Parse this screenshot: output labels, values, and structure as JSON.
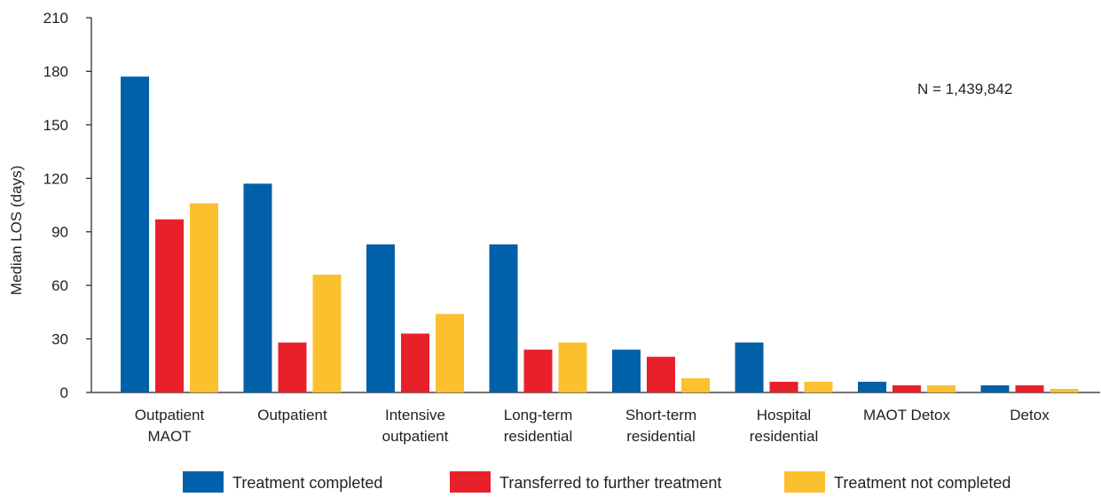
{
  "chart_data": {
    "type": "bar",
    "title": "",
    "xlabel": "",
    "ylabel": "Median LOS (days)",
    "ylim": [
      0,
      210
    ],
    "yticks": [
      0,
      30,
      60,
      90,
      120,
      150,
      180,
      210
    ],
    "grid": false,
    "legend_position": "bottom",
    "annotation": "N = 1,439,842",
    "categories": [
      [
        "Outpatient",
        "MAOT"
      ],
      [
        "Outpatient"
      ],
      [
        "Intensive",
        "outpatient"
      ],
      [
        "Long-term",
        "residential"
      ],
      [
        "Short-term",
        "residential"
      ],
      [
        "Hospital",
        "residential"
      ],
      [
        "MAOT Detox"
      ],
      [
        "Detox"
      ]
    ],
    "series": [
      {
        "name": "Treatment completed",
        "color": "#0060a9",
        "values": [
          177,
          117,
          83,
          83,
          24,
          28,
          6,
          4
        ]
      },
      {
        "name": "Transferred to further treatment",
        "color": "#e8202a",
        "values": [
          97,
          28,
          33,
          24,
          20,
          6,
          4,
          4
        ]
      },
      {
        "name": "Treatment not completed",
        "color": "#fbc02d",
        "values": [
          106,
          66,
          44,
          28,
          8,
          6,
          4,
          2
        ]
      }
    ]
  }
}
